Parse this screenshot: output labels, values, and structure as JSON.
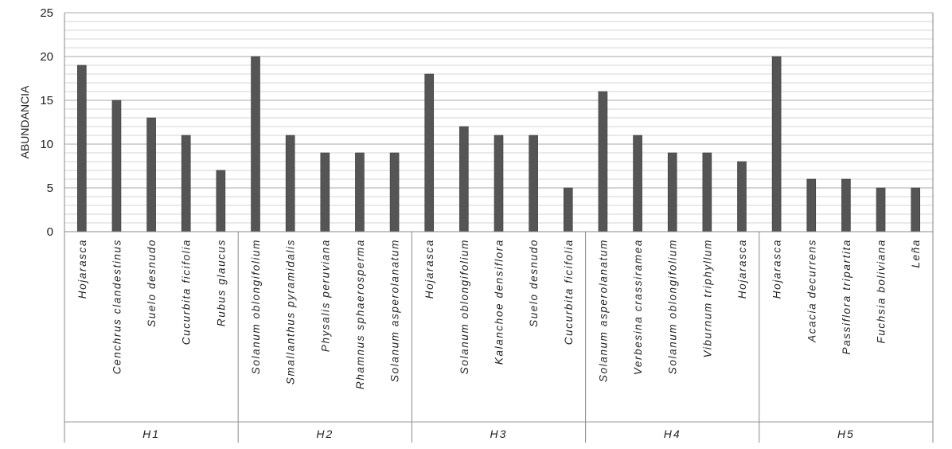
{
  "chart_data": {
    "type": "bar",
    "title": "",
    "xlabel": "",
    "ylabel": "ABUNDANCIA",
    "ylim": [
      0,
      25
    ],
    "yticks": [
      0,
      5,
      10,
      15,
      20,
      25
    ],
    "grid": true,
    "bar_color": "#555555",
    "groups": [
      {
        "name": "H1",
        "categories": [
          "Hojarasca",
          "Cenchrus clandestinus",
          "Suelo desnudo",
          "Cucurbita ficifolia",
          "Rubus glaucus"
        ],
        "values": [
          19,
          15,
          13,
          11,
          7
        ]
      },
      {
        "name": "H2",
        "categories": [
          "Solanum oblongifolium",
          "Smallanthus pyramidalis",
          "Physalis peruviana",
          "Rhamnus sphaerosperma",
          "Solanum asperolanatum"
        ],
        "values": [
          20,
          11,
          9,
          9,
          9
        ]
      },
      {
        "name": "H3",
        "categories": [
          "Hojarasca",
          "Solanum oblongifolium",
          "Kalanchoe densiflora",
          "Suelo desnudo",
          "Cucurbita ficifolia"
        ],
        "values": [
          18,
          12,
          11,
          11,
          5
        ]
      },
      {
        "name": "H4",
        "categories": [
          "Solanum asperolanatum",
          "Verbesina crassiramea",
          "Solanum oblongifolium",
          "Viburnum triphyllum",
          "Hojarasca"
        ],
        "values": [
          16,
          11,
          9,
          9,
          8
        ]
      },
      {
        "name": "H5",
        "categories": [
          "Hojarasca",
          "Acacia decurrens",
          "Passiflora tripartita",
          "Fuchsia boliviana",
          "Leña"
        ],
        "values": [
          20,
          6,
          6,
          5,
          5
        ]
      }
    ]
  }
}
